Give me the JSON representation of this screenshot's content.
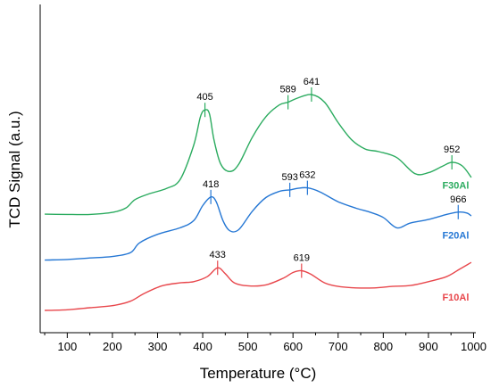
{
  "chart_data": {
    "type": "line",
    "xlabel": "Temperature (°C)",
    "ylabel": "TCD Signal (a.u.)",
    "xlim": [
      40,
      1005
    ],
    "x_ticks": [
      100,
      200,
      300,
      400,
      500,
      600,
      700,
      800,
      900,
      1000
    ],
    "ylim": [
      0,
      100
    ],
    "y_ticks": [],
    "grid": false,
    "series": [
      {
        "name": "F30Al",
        "color": "#2bab5f",
        "points": [
          [
            50,
            32.5
          ],
          [
            100,
            32.4
          ],
          [
            150,
            32.4
          ],
          [
            200,
            33.1
          ],
          [
            230,
            34.6
          ],
          [
            250,
            37.4
          ],
          [
            280,
            39.3
          ],
          [
            320,
            41.2
          ],
          [
            350,
            44.2
          ],
          [
            380,
            55.7
          ],
          [
            395,
            65.4
          ],
          [
            405,
            67.7
          ],
          [
            415,
            66.4
          ],
          [
            425,
            57.6
          ],
          [
            440,
            49.4
          ],
          [
            460,
            46.9
          ],
          [
            480,
            49.4
          ],
          [
            510,
            58.5
          ],
          [
            540,
            65.4
          ],
          [
            570,
            69.4
          ],
          [
            589,
            70.3
          ],
          [
            610,
            71.7
          ],
          [
            641,
            72.9
          ],
          [
            670,
            70.3
          ],
          [
            700,
            63.4
          ],
          [
            730,
            57.6
          ],
          [
            760,
            54.5
          ],
          [
            790,
            53.6
          ],
          [
            830,
            51.6
          ],
          [
            870,
            46.2
          ],
          [
            900,
            46.5
          ],
          [
            930,
            48.6
          ],
          [
            952,
            50.0
          ],
          [
            975,
            48.8
          ],
          [
            995,
            44.9
          ]
        ],
        "peaks": [
          {
            "x": 405,
            "label": "405"
          },
          {
            "x": 589,
            "label": "589"
          },
          {
            "x": 641,
            "label": "641"
          },
          {
            "x": 952,
            "label": "952"
          }
        ]
      },
      {
        "name": "F20Al",
        "color": "#2577d4",
        "points": [
          [
            50,
            17.0
          ],
          [
            100,
            17.2
          ],
          [
            150,
            17.7
          ],
          [
            200,
            18.2
          ],
          [
            240,
            19.5
          ],
          [
            260,
            22.8
          ],
          [
            300,
            25.7
          ],
          [
            350,
            27.9
          ],
          [
            380,
            30.3
          ],
          [
            400,
            35.4
          ],
          [
            418,
            38.3
          ],
          [
            430,
            36.7
          ],
          [
            445,
            30.3
          ],
          [
            460,
            26.9
          ],
          [
            480,
            27.3
          ],
          [
            510,
            33.5
          ],
          [
            540,
            38.1
          ],
          [
            570,
            40.2
          ],
          [
            593,
            40.7
          ],
          [
            610,
            41.2
          ],
          [
            632,
            41.4
          ],
          [
            660,
            40.0
          ],
          [
            700,
            36.7
          ],
          [
            740,
            34.5
          ],
          [
            770,
            33.2
          ],
          [
            800,
            31.4
          ],
          [
            830,
            27.9
          ],
          [
            860,
            29.5
          ],
          [
            900,
            30.7
          ],
          [
            940,
            32.4
          ],
          [
            966,
            33.2
          ],
          [
            985,
            32.9
          ],
          [
            995,
            31.9
          ]
        ],
        "peaks": [
          {
            "x": 418,
            "label": "418"
          },
          {
            "x": 593,
            "label": "593"
          },
          {
            "x": 632,
            "label": "632"
          },
          {
            "x": 966,
            "label": "966"
          }
        ]
      },
      {
        "name": "F10Al",
        "color": "#e8474c",
        "points": [
          [
            50,
            0.0
          ],
          [
            100,
            0.2
          ],
          [
            150,
            0.9
          ],
          [
            200,
            1.6
          ],
          [
            240,
            3.1
          ],
          [
            270,
            5.7
          ],
          [
            310,
            8.3
          ],
          [
            350,
            9.3
          ],
          [
            380,
            9.7
          ],
          [
            410,
            11.4
          ],
          [
            433,
            14.4
          ],
          [
            450,
            12.4
          ],
          [
            470,
            9.3
          ],
          [
            500,
            8.3
          ],
          [
            540,
            8.6
          ],
          [
            580,
            11.0
          ],
          [
            600,
            12.8
          ],
          [
            619,
            13.4
          ],
          [
            640,
            12.2
          ],
          [
            670,
            9.3
          ],
          [
            700,
            8.1
          ],
          [
            740,
            7.6
          ],
          [
            780,
            7.6
          ],
          [
            820,
            8.1
          ],
          [
            860,
            8.4
          ],
          [
            900,
            9.7
          ],
          [
            940,
            11.4
          ],
          [
            970,
            14.0
          ],
          [
            995,
            16.2
          ]
        ],
        "peaks": [
          {
            "x": 433,
            "label": "433"
          },
          {
            "x": 619,
            "label": "619"
          }
        ]
      }
    ]
  }
}
